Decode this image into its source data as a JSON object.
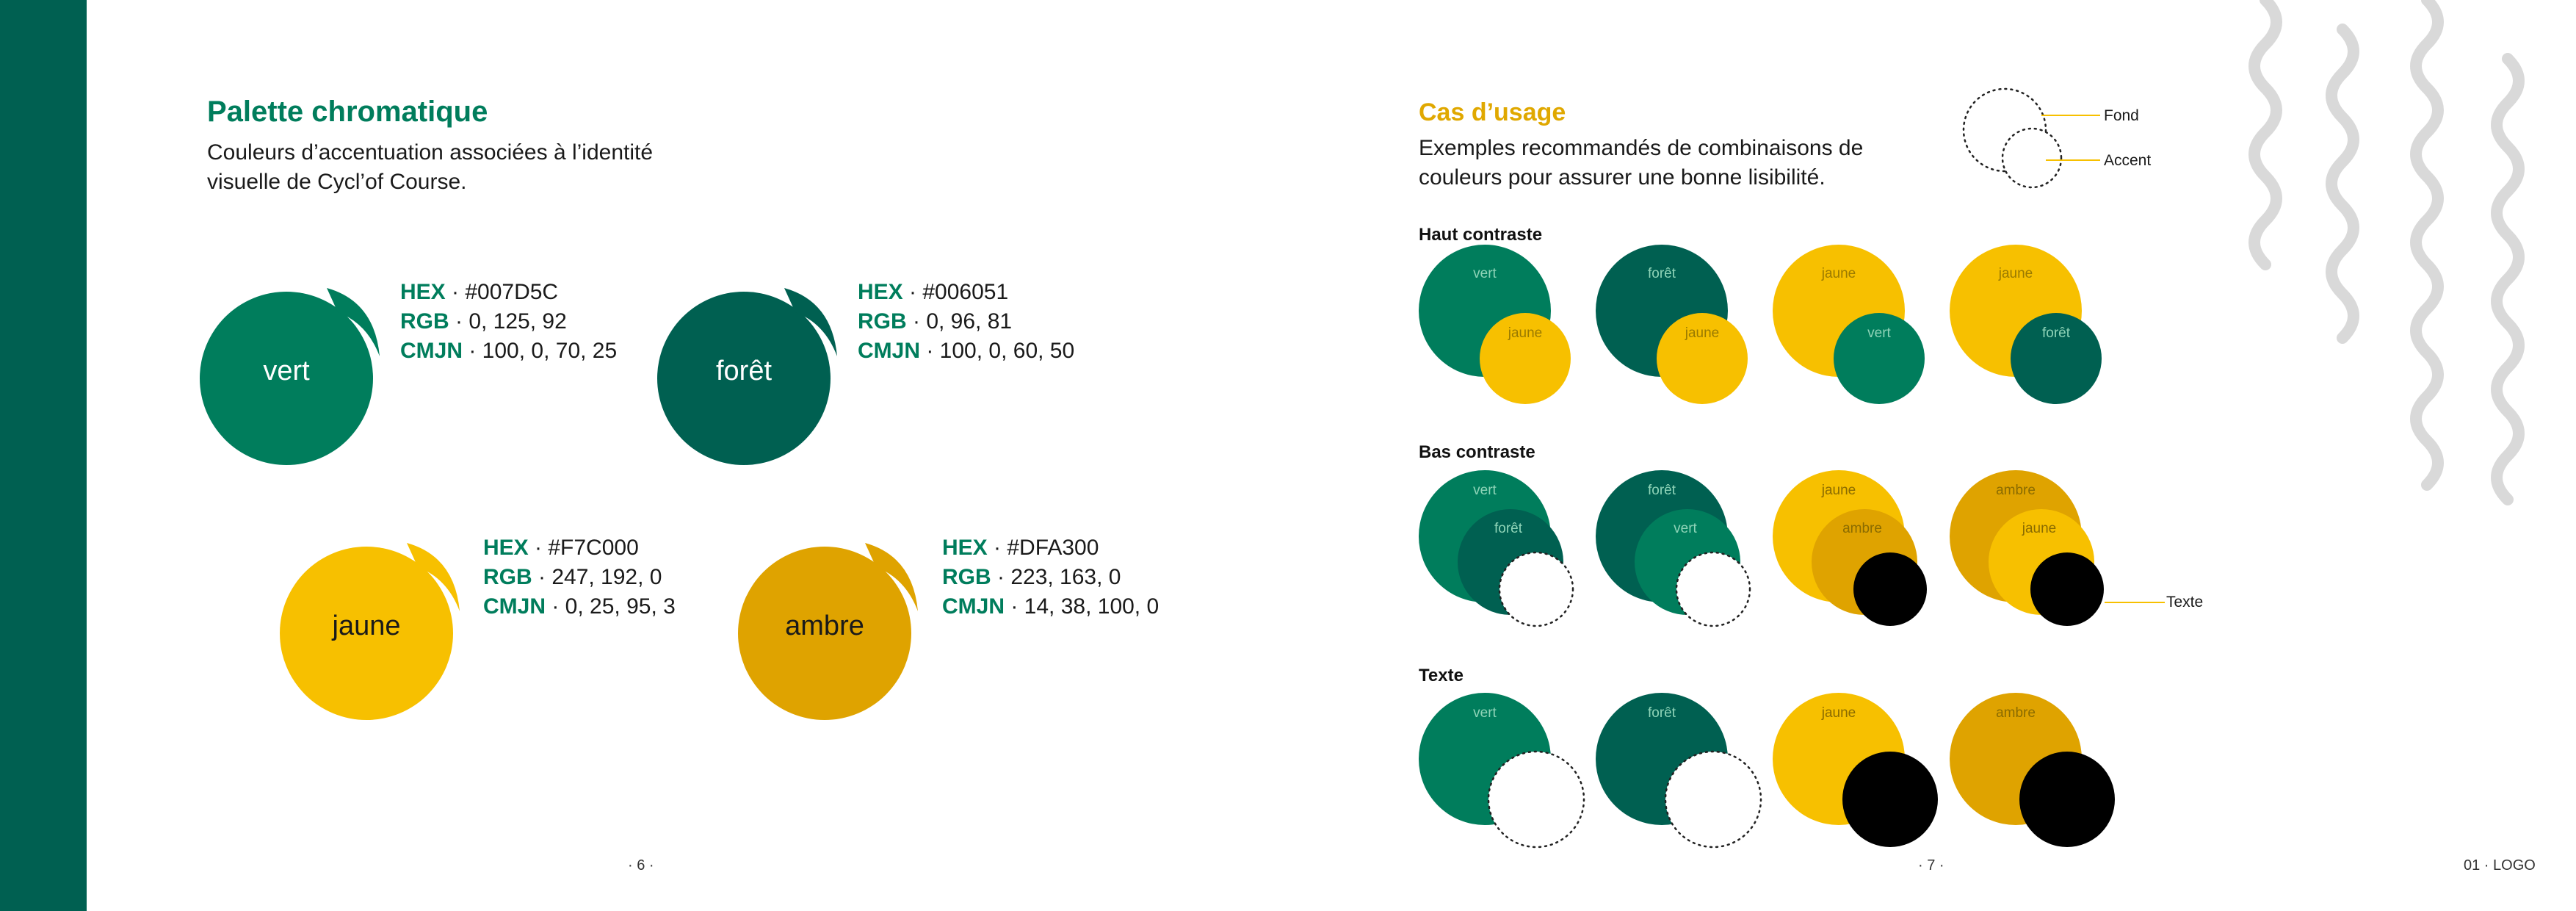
{
  "left_page": {
    "title": "Palette chromatique",
    "subtitle_line1": "Couleurs d’accentuation associées à l’identité",
    "subtitle_line2": "visuelle de Cycl’of Course.",
    "page_number": "· 6 ·",
    "swatches": [
      {
        "name": "vert",
        "hex_label": "HEX",
        "hex": " · #007D5C",
        "rgb_label": "RGB",
        "rgb": " · 0, 125, 92",
        "cmjn_label": "CMJN",
        "cmjn": " · 100, 0, 70, 25",
        "color": "#007D5C",
        "text_color": "#ffffff"
      },
      {
        "name": "forêt",
        "hex_label": "HEX",
        "hex": " · #006051",
        "rgb_label": "RGB",
        "rgb": " · 0, 96, 81",
        "cmjn_label": "CMJN",
        "cmjn": " · 100, 0, 60, 50",
        "color": "#006051",
        "text_color": "#ffffff"
      },
      {
        "name": "jaune",
        "hex_label": "HEX",
        "hex": " · #F7C000",
        "rgb_label": "RGB",
        "rgb": " · 247, 192, 0",
        "cmjn_label": "CMJN",
        "cmjn": " · 0, 25, 95, 3",
        "color": "#F7C000",
        "text_color": "#1a1a1a"
      },
      {
        "name": "ambre",
        "hex_label": "HEX",
        "hex": " · #DFA300",
        "rgb_label": "RGB",
        "rgb": " · 223, 163, 0",
        "cmjn_label": "CMJN",
        "cmjn": " · 14, 38, 100, 0",
        "color": "#DFA300",
        "text_color": "#1a1a1a"
      }
    ]
  },
  "right_page": {
    "title": "Cas d’usage",
    "subtitle_line1": "Exemples recommandés de combinaisons de",
    "subtitle_line2": "couleurs pour assurer une bonne lisibilité.",
    "legend": {
      "fond": "Fond",
      "accent": "Accent",
      "texte": "Texte"
    },
    "page_number": "· 7 ·",
    "footer_label": "01 · LOGO",
    "sections": {
      "haut": "Haut contraste",
      "bas": "Bas contraste",
      "texte": "Texte"
    },
    "haut_combos": [
      {
        "fond": "vert",
        "accent": "jaune"
      },
      {
        "fond": "forêt",
        "accent": "jaune"
      },
      {
        "fond": "jaune",
        "accent": "vert"
      },
      {
        "fond": "jaune",
        "accent": "forêt"
      }
    ],
    "bas_combos": [
      {
        "fond": "vert",
        "accent": "forêt"
      },
      {
        "fond": "forêt",
        "accent": "vert"
      },
      {
        "fond": "jaune",
        "accent": "ambre"
      },
      {
        "fond": "ambre",
        "accent": "jaune"
      }
    ],
    "texte_combos": [
      {
        "fond": "vert"
      },
      {
        "fond": "forêt"
      },
      {
        "fond": "jaune"
      },
      {
        "fond": "ambre"
      }
    ]
  },
  "colors": {
    "vert": "#007D5C",
    "foret": "#006051",
    "jaune": "#F7C000",
    "ambre": "#DFA300",
    "black": "#000000",
    "white": "#ffffff",
    "line": "#F7C000",
    "wave": "#d9d9d9"
  }
}
